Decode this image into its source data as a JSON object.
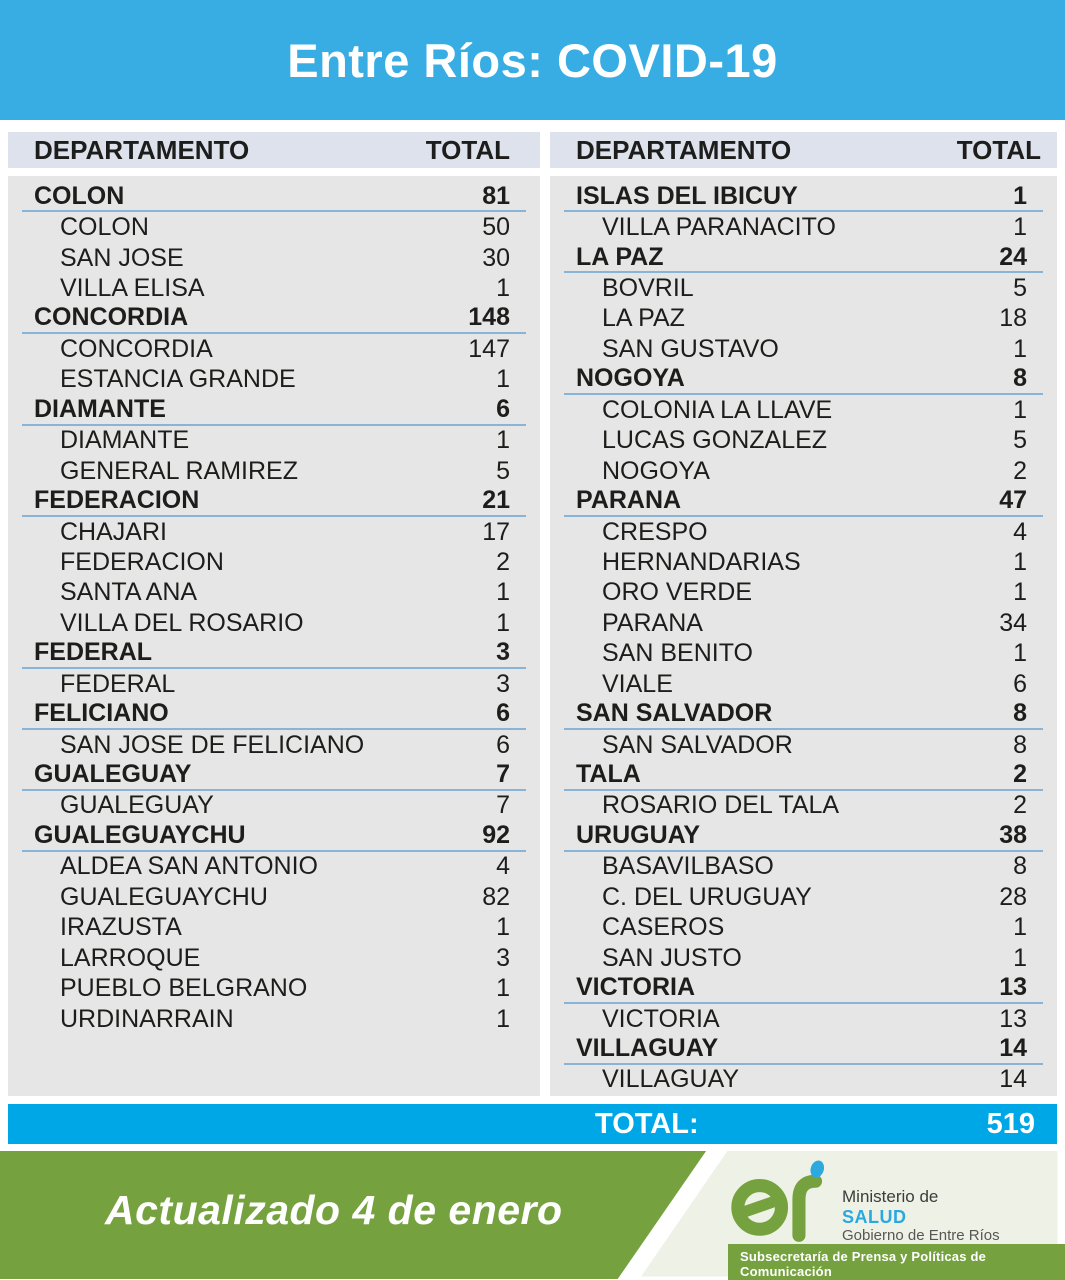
{
  "header": {
    "title": "Entre Ríos: COVID-19"
  },
  "table": {
    "department_header": "DEPARTAMENTO",
    "total_header": "TOTAL"
  },
  "total_row": {
    "label": "TOTAL:",
    "value": "519"
  },
  "footer": {
    "updated_text": "Actualizado 4 de enero",
    "ministry_line1": "Ministerio de",
    "ministry_name": "SALUD",
    "government": "Gobierno de Entre Ríos",
    "subsecretary": "Subsecretaría de Prensa y Políticas de Comunicación",
    "logo": "er-logo"
  },
  "colors": {
    "banner_blue": "#38ade3",
    "total_bar_blue": "#00a7e7",
    "header_row_bg": "#dde2ec",
    "panel_bg": "#e6e6e6",
    "group_underline": "#8ab4d6",
    "text_dark": "#1d1d1b",
    "footer_green": "#75a23f",
    "footer_cream": "#eef1e5",
    "salud_blue": "#29a9e0",
    "white": "#ffffff"
  },
  "chart_data": {
    "type": "table",
    "title": "Entre Ríos: COVID-19",
    "columns": [
      "DEPARTAMENTO",
      "TOTAL"
    ],
    "grand_total": 519,
    "updated": "Actualizado 4 de enero",
    "left": [
      {
        "department": "COLON",
        "total": 81,
        "localities": [
          [
            "COLON",
            50
          ],
          [
            "SAN JOSE",
            30
          ],
          [
            "VILLA ELISA",
            1
          ]
        ]
      },
      {
        "department": "CONCORDIA",
        "total": 148,
        "localities": [
          [
            "CONCORDIA",
            147
          ],
          [
            "ESTANCIA GRANDE",
            1
          ]
        ]
      },
      {
        "department": "DIAMANTE",
        "total": 6,
        "localities": [
          [
            "DIAMANTE",
            1
          ],
          [
            "GENERAL RAMIREZ",
            5
          ]
        ]
      },
      {
        "department": "FEDERACION",
        "total": 21,
        "localities": [
          [
            "CHAJARI",
            17
          ],
          [
            "FEDERACION",
            2
          ],
          [
            "SANTA ANA",
            1
          ],
          [
            "VILLA DEL ROSARIO",
            1
          ]
        ]
      },
      {
        "department": "FEDERAL",
        "total": 3,
        "localities": [
          [
            "FEDERAL",
            3
          ]
        ]
      },
      {
        "department": "FELICIANO",
        "total": 6,
        "localities": [
          [
            "SAN JOSE DE FELICIANO",
            6
          ]
        ]
      },
      {
        "department": "GUALEGUAY",
        "total": 7,
        "localities": [
          [
            "GUALEGUAY",
            7
          ]
        ]
      },
      {
        "department": "GUALEGUAYCHU",
        "total": 92,
        "localities": [
          [
            "ALDEA SAN ANTONIO",
            4
          ],
          [
            "GUALEGUAYCHU",
            82
          ],
          [
            "IRAZUSTA",
            1
          ],
          [
            "LARROQUE",
            3
          ],
          [
            "PUEBLO BELGRANO",
            1
          ],
          [
            "URDINARRAIN",
            1
          ]
        ]
      }
    ],
    "right": [
      {
        "department": "ISLAS DEL IBICUY",
        "total": 1,
        "localities": [
          [
            "VILLA PARANACITO",
            1
          ]
        ]
      },
      {
        "department": "LA PAZ",
        "total": 24,
        "localities": [
          [
            "BOVRIL",
            5
          ],
          [
            "LA PAZ",
            18
          ],
          [
            "SAN GUSTAVO",
            1
          ]
        ]
      },
      {
        "department": "NOGOYA",
        "total": 8,
        "localities": [
          [
            "COLONIA LA LLAVE",
            1
          ],
          [
            "LUCAS GONZALEZ",
            5
          ],
          [
            "NOGOYA",
            2
          ]
        ]
      },
      {
        "department": "PARANA",
        "total": 47,
        "localities": [
          [
            "CRESPO",
            4
          ],
          [
            "HERNANDARIAS",
            1
          ],
          [
            "ORO VERDE",
            1
          ],
          [
            "PARANA",
            34
          ],
          [
            "SAN BENITO",
            1
          ],
          [
            "VIALE",
            6
          ]
        ]
      },
      {
        "department": "SAN SALVADOR",
        "total": 8,
        "localities": [
          [
            "SAN SALVADOR",
            8
          ]
        ]
      },
      {
        "department": "TALA",
        "total": 2,
        "localities": [
          [
            "ROSARIO DEL TALA",
            2
          ]
        ]
      },
      {
        "department": "URUGUAY",
        "total": 38,
        "localities": [
          [
            "BASAVILBASO",
            8
          ],
          [
            "C. DEL URUGUAY",
            28
          ],
          [
            "CASEROS",
            1
          ],
          [
            "SAN JUSTO",
            1
          ]
        ]
      },
      {
        "department": "VICTORIA",
        "total": 13,
        "localities": [
          [
            "VICTORIA",
            13
          ]
        ]
      },
      {
        "department": "VILLAGUAY",
        "total": 14,
        "localities": [
          [
            "VILLAGUAY",
            14
          ]
        ]
      }
    ]
  }
}
